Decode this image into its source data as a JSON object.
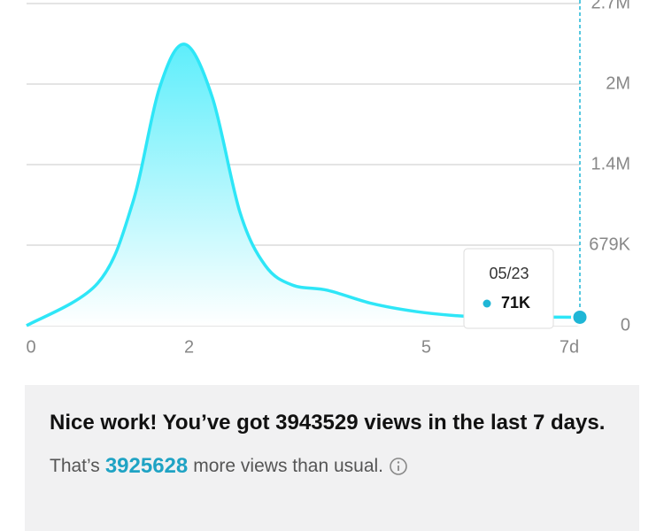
{
  "chart_data": {
    "type": "area",
    "x": [
      0,
      0.9,
      1.34,
      1.68,
      2,
      2.35,
      2.7,
      3.02,
      3.36,
      3.81,
      4.37,
      4.93,
      5.49,
      5.94,
      7
    ],
    "values": [
      0,
      358000,
      1030000,
      2000000,
      2373000,
      1925000,
      955000,
      507000,
      343000,
      298000,
      187000,
      119000,
      82000,
      75000,
      71000
    ],
    "value_labels": [
      null,
      null,
      null,
      null,
      null,
      null,
      null,
      null,
      null,
      null,
      null,
      null,
      null,
      null,
      "71K"
    ],
    "color": "#2ee6f7",
    "marker_color": "#1fb6d6",
    "xlim": [
      0,
      7
    ],
    "xticks": [
      0,
      2,
      5,
      {
        "value": 7,
        "label": "7d"
      }
    ],
    "ylim": [
      0,
      2716000
    ],
    "yticks": [
      0,
      {
        "value": 679000,
        "label": "679K"
      },
      {
        "value": 1358000,
        "label": "1.4M"
      },
      {
        "value": 2037000,
        "label": "2M"
      },
      {
        "value": 2716000,
        "label": "2.7M"
      }
    ],
    "grid": true,
    "tooltip": {
      "date": "05/23"
    }
  },
  "summary": {
    "headline": "Nice work! You’ve got 3943529 views in the last 7 days.",
    "note_prefix": "That’s",
    "extra_views": "3925628",
    "note_suffix": "more views than usual."
  }
}
